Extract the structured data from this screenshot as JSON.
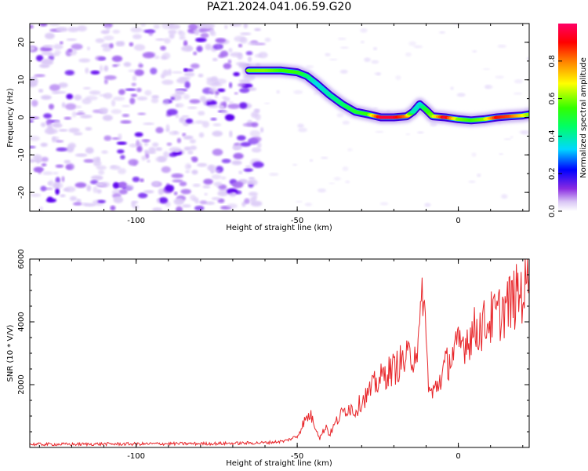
{
  "title": "PAZ1.2024.041.06.59.G20",
  "chart_data": [
    {
      "type": "heatmap",
      "title": "",
      "xlabel": "Height of straight line (km)",
      "ylabel": "Frequency (Hz)",
      "xlim": [
        -133,
        22
      ],
      "ylim": [
        -25,
        25
      ],
      "xticks": [
        -100,
        -50,
        0
      ],
      "xtick_labels": [
        "-100",
        "-50",
        "0"
      ],
      "yticks": [
        -20,
        -10,
        0,
        10,
        20
      ],
      "ytick_labels": [
        "-20",
        "-10",
        "0",
        "10",
        "20"
      ],
      "noise_region_x": [
        -133,
        -63
      ],
      "ridge": {
        "x": [
          -65,
          -60,
          -55,
          -50,
          -47,
          -44,
          -40,
          -36,
          -32,
          -28,
          -24,
          -20,
          -16,
          -14,
          -12,
          -10,
          -8,
          -4,
          0,
          4,
          8,
          12,
          16,
          20,
          22
        ],
        "y": [
          12.5,
          12.5,
          12.5,
          12,
          11,
          9,
          6,
          3.5,
          1.5,
          0.8,
          0,
          0,
          0.3,
          1.5,
          3.5,
          2,
          0.3,
          0,
          -0.5,
          -0.8,
          -0.5,
          0,
          0.3,
          0.5,
          0.8
        ],
        "amplitude": [
          0.6,
          0.6,
          0.55,
          0.55,
          0.45,
          0.35,
          0.4,
          0.45,
          0.5,
          0.55,
          0.95,
          0.95,
          0.8,
          0.4,
          0.35,
          0.5,
          0.6,
          0.95,
          0.6,
          0.55,
          0.6,
          0.9,
          0.85,
          0.7,
          0.6
        ]
      },
      "colorbar": {
        "label": "Normalized spectral amplitude",
        "range": [
          0,
          1
        ],
        "ticks": [
          0.0,
          0.2,
          0.4,
          0.6,
          0.8
        ],
        "tick_labels": [
          "0.0",
          "0.2",
          "0.4",
          "0.6",
          "0.8"
        ]
      }
    },
    {
      "type": "line",
      "title": "",
      "xlabel": "Height of straight line (km)",
      "ylabel": "SNR (10 * V/V)",
      "xlim": [
        -133,
        22
      ],
      "ylim": [
        0,
        6000
      ],
      "xticks": [
        -100,
        -50,
        0
      ],
      "xtick_labels": [
        "-100",
        "-50",
        "0"
      ],
      "yticks": [
        2000,
        4000,
        6000
      ],
      "ytick_labels": [
        "2000",
        "4000",
        "6000"
      ],
      "color": "#e8262a",
      "series": [
        {
          "x": [
            -133,
            -120,
            -110,
            -100,
            -90,
            -80,
            -70,
            -60,
            -54,
            -50,
            -48,
            -46,
            -44,
            -43,
            -41,
            -40,
            -38,
            -36,
            -34,
            -32,
            -30,
            -28,
            -26,
            -24,
            -22,
            -20,
            -18,
            -16,
            -14,
            -12,
            -11,
            -10,
            -9,
            -8,
            -6,
            -4,
            -2,
            0,
            2,
            4,
            6,
            8,
            10,
            12,
            14,
            16,
            18,
            20,
            22
          ],
          "y": [
            100,
            100,
            110,
            110,
            120,
            120,
            130,
            150,
            200,
            350,
            800,
            1050,
            600,
            300,
            700,
            400,
            800,
            1100,
            1300,
            1150,
            1500,
            1700,
            2000,
            2200,
            2400,
            2500,
            2700,
            2800,
            3000,
            3400,
            5300,
            3300,
            1800,
            1700,
            2100,
            2600,
            2900,
            3200,
            3400,
            3600,
            3800,
            3900,
            4100,
            4200,
            4400,
            4600,
            4800,
            5000,
            5400
          ]
        }
      ]
    }
  ]
}
